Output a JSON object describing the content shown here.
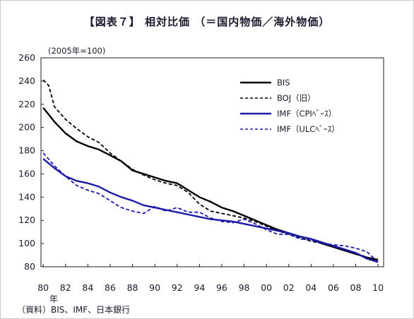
{
  "title": "【図表７】 相対比価 （＝国内物価／海外物価）",
  "unit_note": "(2005年=100)",
  "x_suffix": "年",
  "source": "（資料）BIS、IMF、日本銀行",
  "chart_data": {
    "type": "line",
    "ylim": [
      80,
      260
    ],
    "xlim": [
      1979.8,
      2010.5
    ],
    "y_ticks": [
      80,
      100,
      120,
      140,
      160,
      180,
      200,
      220,
      240,
      260
    ],
    "x_ticks": [
      "80",
      "82",
      "84",
      "86",
      "88",
      "90",
      "92",
      "94",
      "96",
      "98",
      "00",
      "02",
      "04",
      "06",
      "08",
      "10"
    ],
    "x_tick_years": [
      1980,
      1982,
      1984,
      1986,
      1988,
      1990,
      1992,
      1994,
      1996,
      1998,
      2000,
      2002,
      2004,
      2006,
      2008,
      2010
    ],
    "grid": false,
    "legend_position": "top-right",
    "series": [
      {
        "name": "BIS",
        "color": "#000000",
        "style": "solid",
        "points": [
          [
            1980,
            217
          ],
          [
            1981,
            205
          ],
          [
            1982,
            195
          ],
          [
            1983,
            188
          ],
          [
            1984,
            184
          ],
          [
            1985,
            181
          ],
          [
            1986,
            176
          ],
          [
            1987,
            171
          ],
          [
            1988,
            163
          ],
          [
            1989,
            160
          ],
          [
            1990,
            157
          ],
          [
            1991,
            154
          ],
          [
            1992,
            152
          ],
          [
            1993,
            146
          ],
          [
            1994,
            140
          ],
          [
            1995,
            136
          ],
          [
            1996,
            131
          ],
          [
            1997,
            128
          ],
          [
            1998,
            124
          ],
          [
            1999,
            120
          ],
          [
            2000,
            116
          ],
          [
            2001,
            112
          ],
          [
            2002,
            109
          ],
          [
            2003,
            106
          ],
          [
            2004,
            104
          ],
          [
            2005,
            100
          ],
          [
            2006,
            97
          ],
          [
            2007,
            94
          ],
          [
            2008,
            91
          ],
          [
            2009,
            88
          ],
          [
            2010,
            86
          ]
        ]
      },
      {
        "name": "BOJ（旧）",
        "color": "#000000",
        "style": "dashed",
        "points": [
          [
            1980,
            241
          ],
          [
            1980.5,
            236
          ],
          [
            1981,
            218
          ],
          [
            1982,
            207
          ],
          [
            1983,
            199
          ],
          [
            1984,
            192
          ],
          [
            1985,
            187
          ],
          [
            1986,
            178
          ],
          [
            1987,
            171
          ],
          [
            1988,
            164
          ],
          [
            1989,
            159
          ],
          [
            1990,
            155
          ],
          [
            1991,
            152
          ],
          [
            1992,
            150
          ],
          [
            1993,
            144
          ],
          [
            1994,
            134
          ],
          [
            1995,
            128
          ],
          [
            1996,
            126
          ],
          [
            1997,
            124
          ],
          [
            1998,
            122
          ],
          [
            1999,
            119
          ],
          [
            2000,
            115
          ],
          [
            2001,
            111
          ],
          [
            2002,
            108
          ],
          [
            2003,
            105
          ],
          [
            2004,
            102
          ],
          [
            2005,
            100
          ],
          [
            2006,
            97
          ],
          [
            2007,
            94
          ],
          [
            2008,
            92
          ],
          [
            2009,
            88
          ],
          [
            2010,
            85
          ]
        ]
      },
      {
        "name": "IMF（CPIﾍﾞｰｽ）",
        "color": "#1a1aa8",
        "style": "solid",
        "points": [
          [
            1980,
            173
          ],
          [
            1981,
            165
          ],
          [
            1982,
            158
          ],
          [
            1983,
            154
          ],
          [
            1984,
            152
          ],
          [
            1985,
            149
          ],
          [
            1986,
            144
          ],
          [
            1987,
            140
          ],
          [
            1988,
            137
          ],
          [
            1989,
            133
          ],
          [
            1990,
            131
          ],
          [
            1991,
            129
          ],
          [
            1992,
            127
          ],
          [
            1993,
            125
          ],
          [
            1994,
            123
          ],
          [
            1995,
            121
          ],
          [
            1996,
            120
          ],
          [
            1997,
            119
          ],
          [
            1998,
            117
          ],
          [
            1999,
            115
          ],
          [
            2000,
            113
          ],
          [
            2001,
            111
          ],
          [
            2002,
            109
          ],
          [
            2003,
            106
          ],
          [
            2004,
            104
          ],
          [
            2005,
            101
          ],
          [
            2006,
            98
          ],
          [
            2007,
            95
          ],
          [
            2008,
            92
          ],
          [
            2009,
            87
          ],
          [
            2010,
            84
          ]
        ]
      },
      {
        "name": "IMF（ULCﾍﾞｰｽ）",
        "color": "#1a1aa8",
        "style": "dashed",
        "points": [
          [
            1980,
            178
          ],
          [
            1981,
            167
          ],
          [
            1982,
            158
          ],
          [
            1983,
            150
          ],
          [
            1984,
            146
          ],
          [
            1985,
            143
          ],
          [
            1986,
            137
          ],
          [
            1987,
            131
          ],
          [
            1988,
            128
          ],
          [
            1989,
            126
          ],
          [
            1990,
            132
          ],
          [
            1991,
            128
          ],
          [
            1992,
            131
          ],
          [
            1993,
            127
          ],
          [
            1994,
            127
          ],
          [
            1995,
            122
          ],
          [
            1996,
            119
          ],
          [
            1997,
            118
          ],
          [
            1998,
            121
          ],
          [
            1999,
            117
          ],
          [
            2000,
            112
          ],
          [
            2001,
            108
          ],
          [
            2002,
            108
          ],
          [
            2003,
            104
          ],
          [
            2004,
            103
          ],
          [
            2005,
            100
          ],
          [
            2006,
            99
          ],
          [
            2007,
            98
          ],
          [
            2008,
            96
          ],
          [
            2009,
            93
          ],
          [
            2010,
            84
          ]
        ]
      }
    ]
  }
}
